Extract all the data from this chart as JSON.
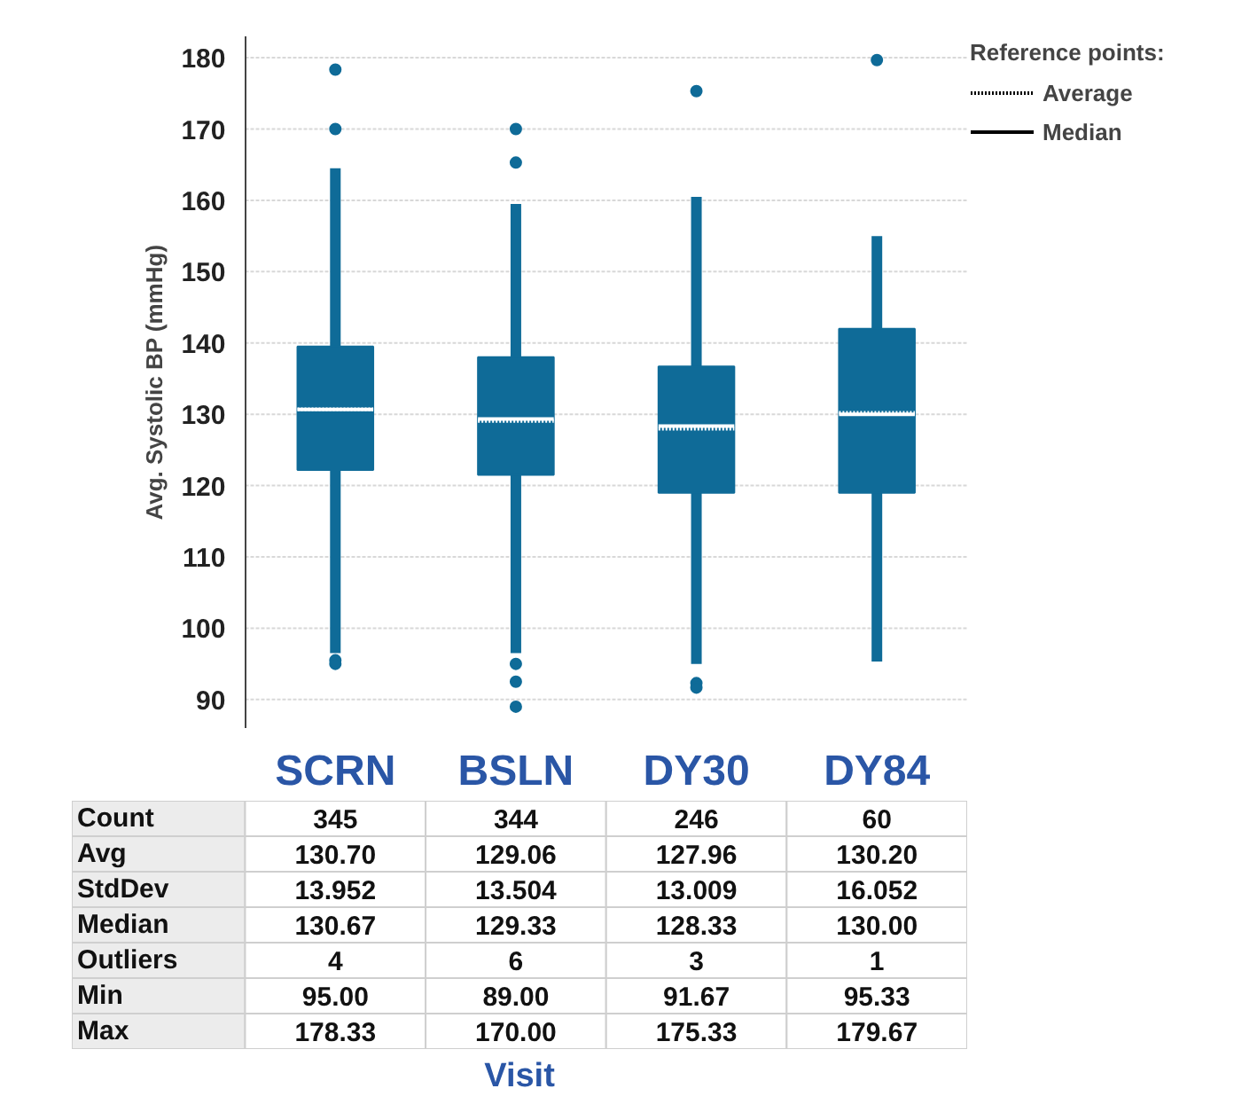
{
  "chart_data": [
    {
      "type": "box",
      "ylabel": "Avg. Systolic BP (mmHg)",
      "xlabel": "Visit",
      "categories": [
        "SCRN",
        "BSLN",
        "DY30",
        "DY84"
      ],
      "color": "#0f6b98",
      "boxes": [
        {
          "low": 96.5,
          "q1": 122.2,
          "median": 130.67,
          "q3": 139.5,
          "high": 164.5,
          "mean": 130.7,
          "outliers": [
            178.33,
            170,
            95.5,
            95
          ]
        },
        {
          "low": 96.5,
          "q1": 121.5,
          "median": 129.33,
          "q3": 138,
          "high": 159.5,
          "mean": 129.06,
          "outliers": [
            170,
            165.3,
            95,
            92.5,
            89
          ]
        },
        {
          "low": 95,
          "q1": 119,
          "median": 128.33,
          "q3": 136.7,
          "high": 160.5,
          "mean": 127.96,
          "outliers": [
            175.33,
            92.3,
            91.67
          ]
        },
        {
          "low": 95.33,
          "q1": 119,
          "median": 130,
          "q3": 142,
          "high": 155,
          "mean": 130.2,
          "outliers": [
            179.67
          ]
        }
      ],
      "ylim": [
        86,
        183
      ],
      "yticks": [
        90,
        100,
        110,
        120,
        130,
        140,
        150,
        160,
        170,
        180
      ],
      "grid": "y",
      "legend_title": "Reference points:",
      "annotations": [
        "Average",
        "Median"
      ]
    },
    {
      "type": "other",
      "categories": [
        null,
        null,
        null,
        null
      ],
      "y_categories": [
        "Count",
        "Avg",
        "StdDev",
        "Median",
        "Outliers",
        "Min",
        "Max"
      ],
      "cell_labels": [
        [
          "345",
          "344",
          "246",
          "60"
        ],
        [
          "130.70",
          "129.06",
          "127.96",
          "130.20"
        ],
        [
          "13.952",
          "13.504",
          "13.009",
          "16.052"
        ],
        [
          "130.67",
          "129.33",
          "128.33",
          "130.00"
        ],
        [
          "4",
          "6",
          "3",
          "1"
        ],
        [
          "95.00",
          "89.00",
          "91.67",
          "95.33"
        ],
        [
          "178.33",
          "170.00",
          "175.33",
          "179.67"
        ]
      ]
    }
  ]
}
